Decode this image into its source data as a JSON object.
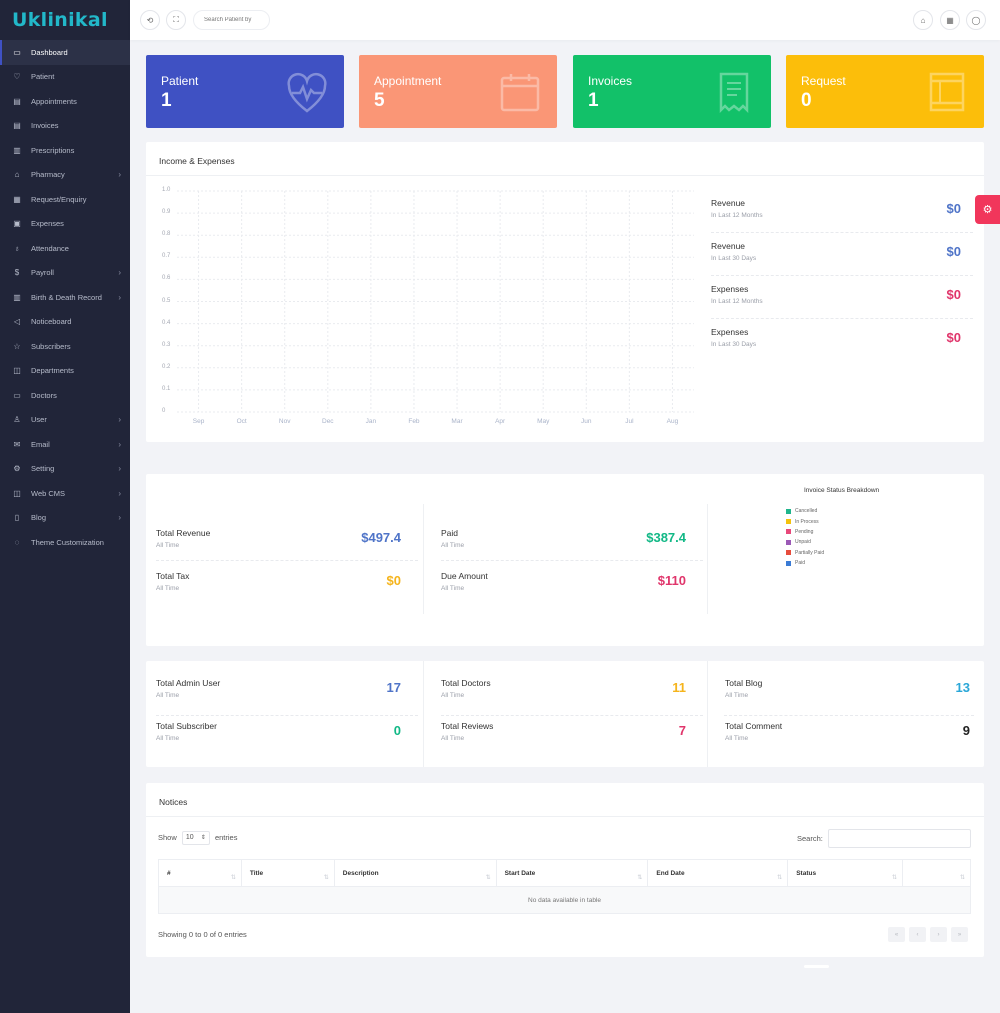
{
  "app": {
    "logo": "Uklinikal"
  },
  "sidebar": {
    "items": [
      {
        "label": "Dashboard",
        "icon": "monitor-icon",
        "active": true,
        "submenu": false
      },
      {
        "label": "Patient",
        "icon": "heart-icon",
        "submenu": false
      },
      {
        "label": "Appointments",
        "icon": "calendar-icon",
        "submenu": false
      },
      {
        "label": "Invoices",
        "icon": "invoice-icon",
        "submenu": false
      },
      {
        "label": "Prescriptions",
        "icon": "prescription-icon",
        "submenu": false
      },
      {
        "label": "Pharmacy",
        "icon": "pharmacy-icon",
        "submenu": true
      },
      {
        "label": "Request/Enquiry",
        "icon": "request-icon",
        "submenu": false
      },
      {
        "label": "Expenses",
        "icon": "expenses-icon",
        "submenu": false
      },
      {
        "label": "Attendance",
        "icon": "attendance-icon",
        "submenu": false
      },
      {
        "label": "Payroll",
        "icon": "dollar-icon",
        "submenu": true
      },
      {
        "label": "Birth & Death Record",
        "icon": "record-icon",
        "submenu": true
      },
      {
        "label": "Noticeboard",
        "icon": "megaphone-icon",
        "submenu": false
      },
      {
        "label": "Subscribers",
        "icon": "star-icon",
        "submenu": false
      },
      {
        "label": "Departments",
        "icon": "departments-icon",
        "submenu": false
      },
      {
        "label": "Doctors",
        "icon": "doctors-icon",
        "submenu": false
      },
      {
        "label": "User",
        "icon": "user-icon",
        "submenu": true
      },
      {
        "label": "Email",
        "icon": "email-icon",
        "submenu": true
      },
      {
        "label": "Setting",
        "icon": "gear-icon",
        "submenu": true
      },
      {
        "label": "Web CMS",
        "icon": "web-icon",
        "submenu": true
      },
      {
        "label": "Blog",
        "icon": "blog-icon",
        "submenu": true
      },
      {
        "label": "Theme Customization",
        "icon": "palette-icon",
        "submenu": false
      }
    ]
  },
  "topbar": {
    "search_placeholder": "Search Patient by"
  },
  "stats": [
    {
      "label": "Patient",
      "value": "1",
      "color": "#3f51c3",
      "icon": "heart-pulse-icon"
    },
    {
      "label": "Appointment",
      "value": "5",
      "color": "#fa9676",
      "icon": "calendar-icon"
    },
    {
      "label": "Invoices",
      "value": "1",
      "color": "#12c169",
      "icon": "receipt-icon"
    },
    {
      "label": "Request",
      "value": "0",
      "color": "#fcbe0a",
      "icon": "request-icon"
    }
  ],
  "income": {
    "title": "Income & Expenses",
    "rows": [
      {
        "title": "Revenue",
        "sub": "In Last 12 Months",
        "value": "$0",
        "color": "#4f74c8"
      },
      {
        "title": "Revenue",
        "sub": "In Last 30 Days",
        "value": "$0",
        "color": "#4f74c8"
      },
      {
        "title": "Expenses",
        "sub": "In Last 12 Months",
        "value": "$0",
        "color": "#e0356b"
      },
      {
        "title": "Expenses",
        "sub": "In Last 30 Days",
        "value": "$0",
        "color": "#e0356b"
      }
    ]
  },
  "chart_data": {
    "type": "line",
    "categories": [
      "Sep",
      "Oct",
      "Nov",
      "Dec",
      "Jan",
      "Feb",
      "Mar",
      "Apr",
      "May",
      "Jun",
      "Jul",
      "Aug"
    ],
    "yticks": [
      "1.0",
      "0.9",
      "0.8",
      "0.7",
      "0.6",
      "0.5",
      "0.4",
      "0.3",
      "0.2",
      "0.1",
      "0"
    ],
    "ylim": [
      0,
      1
    ],
    "series": [],
    "grid": true
  },
  "finance": {
    "items": [
      {
        "title": "Total Revenue",
        "sub": "All Time",
        "value": "$497.4",
        "color": "#4f74c8"
      },
      {
        "title": "Paid",
        "sub": "All Time",
        "value": "$387.4",
        "color": "#12b886"
      },
      {
        "title": "Total Tax",
        "sub": "All Time",
        "value": "$0",
        "color": "#f5b41c"
      },
      {
        "title": "Due Amount",
        "sub": "All Time",
        "value": "$110",
        "color": "#e0356b"
      }
    ],
    "breakdown_title": "Invoice Status Breakdown",
    "legend": [
      {
        "label": "Cancelled",
        "color": "#1fb58c"
      },
      {
        "label": "In Process",
        "color": "#f4c20d"
      },
      {
        "label": "Pending",
        "color": "#e8487a"
      },
      {
        "label": "Unpaid",
        "color": "#9b59b6"
      },
      {
        "label": "Partially Paid",
        "color": "#e74c3c"
      },
      {
        "label": "Paid",
        "color": "#3a7bd5"
      }
    ]
  },
  "totals": {
    "items": [
      {
        "title": "Total Admin User",
        "sub": "All Time",
        "value": "17",
        "color": "#4f74c8"
      },
      {
        "title": "Total Doctors",
        "sub": "All Time",
        "value": "11",
        "color": "#f5b41c"
      },
      {
        "title": "Total Blog",
        "sub": "All Time",
        "value": "13",
        "color": "#2aa7d8"
      },
      {
        "title": "Total Subscriber",
        "sub": "All Time",
        "value": "0",
        "color": "#12b886"
      },
      {
        "title": "Total Reviews",
        "sub": "All Time",
        "value": "7",
        "color": "#e0356b"
      },
      {
        "title": "Total Comment",
        "sub": "All Time",
        "value": "9",
        "color": "#222222"
      }
    ]
  },
  "notices": {
    "title": "Notices",
    "show_label": "Show",
    "entries_value": "10",
    "entries_label": "entries",
    "search_label": "Search:",
    "columns": [
      "#",
      "Title",
      "Description",
      "Start Date",
      "End Date",
      "Status",
      ""
    ],
    "empty_text": "No data available in table",
    "info": "Showing 0 to 0 of 0 entries",
    "pager": [
      "«",
      "‹",
      "›",
      "»"
    ]
  }
}
